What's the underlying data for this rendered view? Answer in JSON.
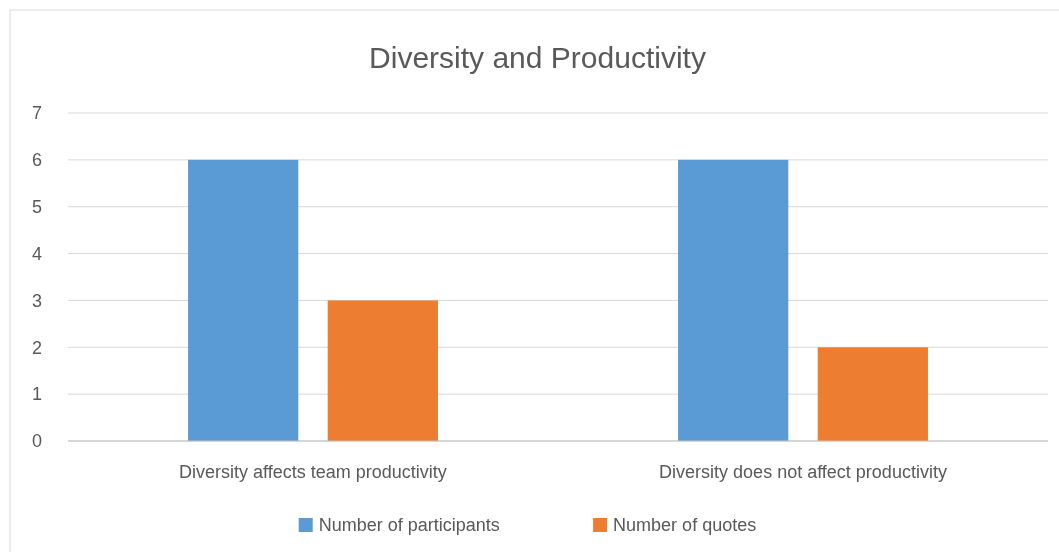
{
  "chart_data": {
    "type": "bar",
    "title": "Diversity and Productivity",
    "categories": [
      "Diversity affects team productivity",
      "Diversity does not affect productivity"
    ],
    "series": [
      {
        "name": "Number of participants",
        "color": "#5b9bd5",
        "values": [
          6,
          6
        ]
      },
      {
        "name": "Number of quotes",
        "color": "#ed7d31",
        "values": [
          3,
          2
        ]
      }
    ],
    "ylim": [
      0,
      7
    ],
    "yticks": [
      0,
      1,
      2,
      3,
      4,
      5,
      6,
      7
    ],
    "grid": "y",
    "legend": "bottom"
  }
}
